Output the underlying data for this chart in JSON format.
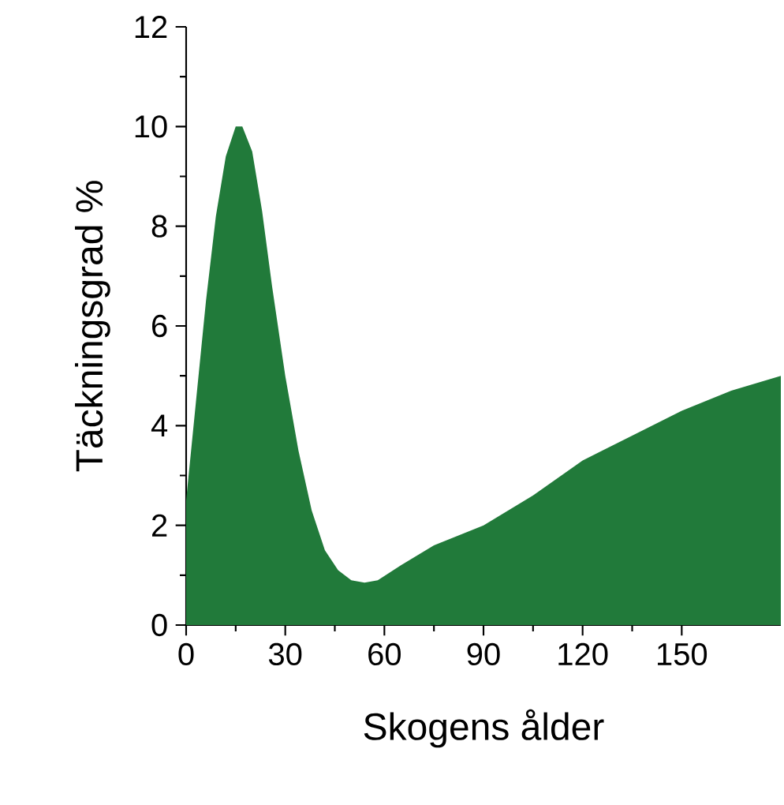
{
  "chart_data": {
    "type": "area",
    "xlabel": "Skogens ålder",
    "ylabel": "Täckningsgrad %",
    "color": "#217a3a",
    "x": [
      0,
      3,
      6,
      9,
      12,
      15,
      17,
      20,
      23,
      26,
      30,
      34,
      38,
      42,
      46,
      50,
      54,
      58,
      65,
      75,
      90,
      105,
      120,
      135,
      150,
      165,
      180
    ],
    "values": [
      2.5,
      4.5,
      6.5,
      8.2,
      9.4,
      10.0,
      10.0,
      9.5,
      8.3,
      6.8,
      5.0,
      3.5,
      2.3,
      1.5,
      1.1,
      0.9,
      0.85,
      0.9,
      1.2,
      1.6,
      2.0,
      2.6,
      3.3,
      3.8,
      4.3,
      4.7,
      5.0
    ],
    "xlim": [
      0,
      180
    ],
    "ylim": [
      0,
      12
    ],
    "xticks": [
      0,
      30,
      60,
      90,
      120,
      150
    ],
    "yticks": [
      0,
      2,
      4,
      6,
      8,
      10,
      12
    ]
  }
}
